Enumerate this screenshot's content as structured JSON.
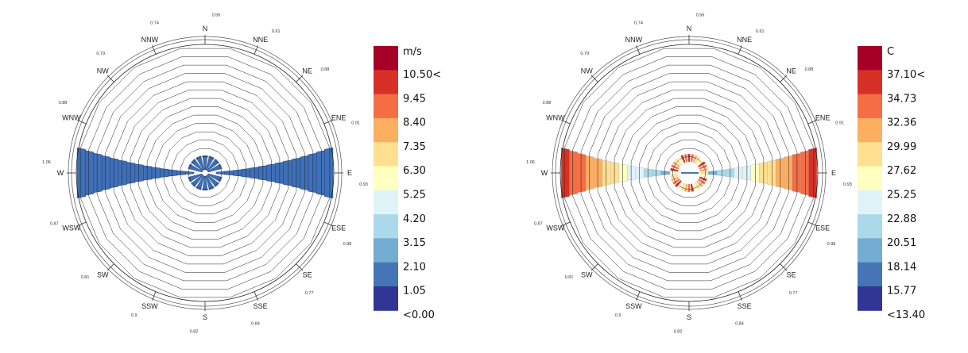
{
  "chart_data": [
    {
      "type": "wind-rose",
      "directions": [
        "N",
        "NNE",
        "NE",
        "ENE",
        "E",
        "ESE",
        "SE",
        "SSE",
        "S",
        "SSW",
        "SW",
        "WSW",
        "W",
        "WNW",
        "NW",
        "NNW"
      ],
      "direction_percent_labels": [
        "0.56",
        "0.61",
        "0.88",
        "0.91",
        "0.93",
        "0.98",
        "0.77",
        "0.84",
        "0.82",
        "0.9",
        "0.81",
        "0.87",
        "1.06",
        "0.88",
        "0.79",
        "0.74"
      ],
      "legend": {
        "unit": "m/s",
        "labels": [
          "10.50<",
          "9.45",
          "8.40",
          "7.35",
          "6.30",
          "5.25",
          "4.20",
          "3.15",
          "2.10",
          "1.05",
          "<0.00"
        ],
        "colors": [
          "#a50026",
          "#d73027",
          "#f46d43",
          "#fdae61",
          "#fee090",
          "#ffffbf",
          "#e0f3f8",
          "#abd9e9",
          "#74add1",
          "#4575b4",
          "#313695"
        ]
      },
      "ring_count": 14,
      "petal_color": "#3f6fb6"
    },
    {
      "type": "wind-rose",
      "directions": [
        "N",
        "NNE",
        "NE",
        "ENE",
        "E",
        "ESE",
        "SE",
        "SSE",
        "S",
        "SSW",
        "SW",
        "WSW",
        "W",
        "WNW",
        "NW",
        "NNW"
      ],
      "direction_percent_labels": [
        "0.56",
        "0.61",
        "0.88",
        "0.91",
        "0.93",
        "0.98",
        "0.77",
        "0.84",
        "0.82",
        "0.9",
        "0.81",
        "0.87",
        "1.06",
        "0.88",
        "0.79",
        "0.74"
      ],
      "legend": {
        "unit": "C",
        "labels": [
          "37.10<",
          "34.73",
          "32.36",
          "29.99",
          "27.62",
          "25.25",
          "22.88",
          "20.51",
          "18.14",
          "15.77",
          "<13.40"
        ],
        "colors": [
          "#a50026",
          "#d73027",
          "#f46d43",
          "#fdae61",
          "#fee090",
          "#ffffbf",
          "#e0f3f8",
          "#abd9e9",
          "#74add1",
          "#4575b4",
          "#313695"
        ]
      },
      "ring_count": 14,
      "petal_gradient": [
        "#74add1",
        "#abd9e9",
        "#e0f3f8",
        "#ffffbf",
        "#fee090",
        "#fdae61",
        "#f46d43",
        "#d73027"
      ]
    }
  ]
}
